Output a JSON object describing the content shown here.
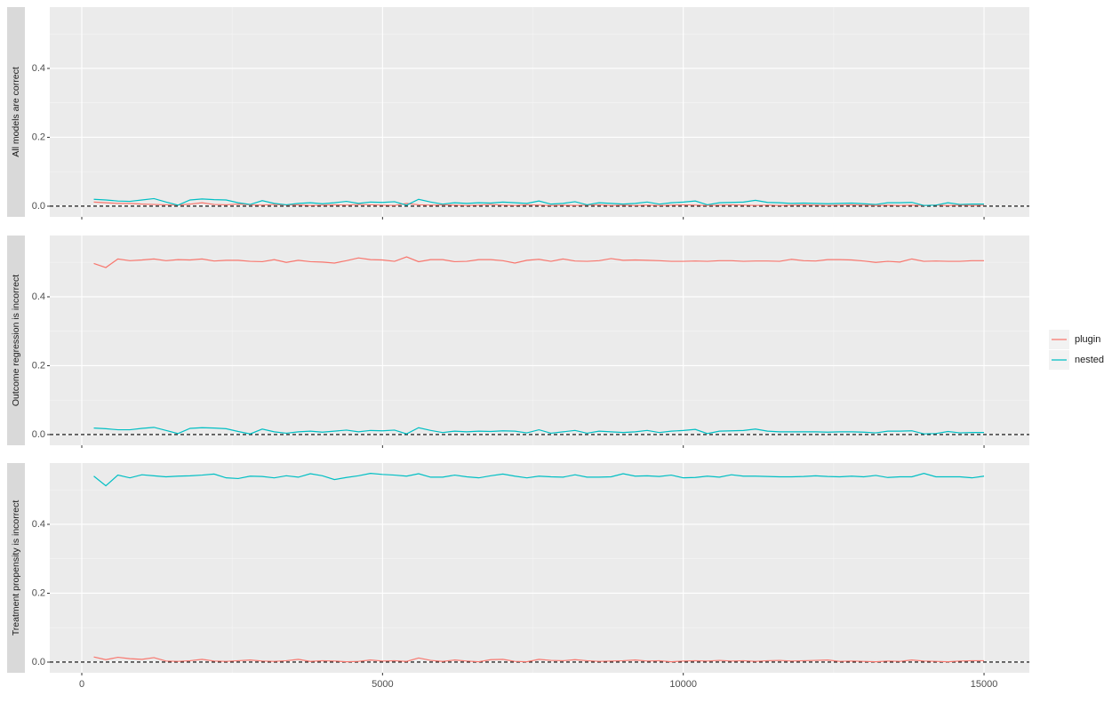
{
  "chart_data": {
    "type": "line",
    "facets": [
      "All models are correct",
      "Outcome regression is incorrect",
      "Treatment propensity is incorrect"
    ],
    "x": [
      200,
      400,
      600,
      800,
      1000,
      1200,
      1400,
      1600,
      1800,
      2000,
      2200,
      2400,
      2600,
      2800,
      3000,
      3200,
      3400,
      3600,
      3800,
      4000,
      4200,
      4400,
      4600,
      4800,
      5000,
      5200,
      5400,
      5600,
      5800,
      6000,
      6200,
      6400,
      6600,
      6800,
      7000,
      7200,
      7400,
      7600,
      7800,
      8000,
      8200,
      8400,
      8600,
      8800,
      9000,
      9200,
      9400,
      9600,
      9800,
      10000,
      10200,
      10400,
      10600,
      10800,
      11000,
      11200,
      11400,
      11600,
      11800,
      12000,
      12200,
      12400,
      12600,
      12800,
      13000,
      13200,
      13400,
      13600,
      13800,
      14000,
      14200,
      14400,
      14600,
      14800,
      15000
    ],
    "xlim": [
      -532,
      15753
    ],
    "xticks": [
      0,
      5000,
      10000,
      15000
    ],
    "ylim": [
      -0.031,
      0.578
    ],
    "yticks": [
      {
        "value": 0,
        "label": "0.0"
      },
      {
        "value": 0.2,
        "label": "0.2"
      },
      {
        "value": 0.4,
        "label": "0.4"
      }
    ],
    "hline": 0,
    "grid": true,
    "legend": "right",
    "series": [
      {
        "name": "plugin",
        "color": "#F8766D",
        "values": [
          [
            0.012,
            0.01,
            0.008,
            0.008,
            0.006,
            0.005,
            0.004,
            0.003,
            0.006,
            0.01,
            0.005,
            0.004,
            0.006,
            0.004,
            0.003,
            0.005,
            0.003,
            0.004,
            0.002,
            0.003,
            0.004,
            0.003,
            0.005,
            0.004,
            0.003,
            0.002,
            0.008,
            0.004,
            0.003,
            0.004,
            0.003,
            0.002,
            0.003,
            0.005,
            0.003,
            0.002,
            0.004,
            0.003,
            0.002,
            0.003,
            0.002,
            0.003,
            0.004,
            0.002,
            0.003,
            0.002,
            0.003,
            0.002,
            0.003,
            0.004,
            0.003,
            0.002,
            0.003,
            0.004,
            0.003,
            0.002,
            0.003,
            0.002,
            0.003,
            0.004,
            0.003,
            0.002,
            0.003,
            0.004,
            0.003,
            0.002,
            0.003,
            0.002,
            0.003,
            0.002,
            0.003,
            0.002,
            0.003,
            0.002,
            0.003
          ],
          [
            0.497,
            0.485,
            0.51,
            0.505,
            0.507,
            0.51,
            0.505,
            0.508,
            0.507,
            0.51,
            0.504,
            0.506,
            0.506,
            0.503,
            0.502,
            0.508,
            0.5,
            0.506,
            0.502,
            0.501,
            0.498,
            0.505,
            0.513,
            0.508,
            0.507,
            0.503,
            0.516,
            0.502,
            0.508,
            0.508,
            0.502,
            0.503,
            0.508,
            0.508,
            0.505,
            0.498,
            0.506,
            0.509,
            0.503,
            0.51,
            0.504,
            0.503,
            0.505,
            0.511,
            0.506,
            0.507,
            0.506,
            0.505,
            0.503,
            0.503,
            0.504,
            0.503,
            0.505,
            0.505,
            0.503,
            0.504,
            0.504,
            0.503,
            0.509,
            0.505,
            0.504,
            0.508,
            0.508,
            0.507,
            0.504,
            0.5,
            0.503,
            0.501,
            0.51,
            0.503,
            0.504,
            0.503,
            0.503,
            0.505,
            0.505
          ],
          [
            0.015,
            0.007,
            0.014,
            0.01,
            0.008,
            0.013,
            0.003,
            0.002,
            0.004,
            0.008,
            0.003,
            0.002,
            0.004,
            0.006,
            0.003,
            0.002,
            0.004,
            0.008,
            0.002,
            0.004,
            0.003,
            0.001,
            0.002,
            0.006,
            0.003,
            0.004,
            0.002,
            0.012,
            0.005,
            0.002,
            0.006,
            0.003,
            0.001,
            0.007,
            0.008,
            0.002,
            0.001,
            0.008,
            0.005,
            0.004,
            0.007,
            0.004,
            0.002,
            0.003,
            0.004,
            0.006,
            0.003,
            0.004,
            0.001,
            0.003,
            0.004,
            0.003,
            0.005,
            0.003,
            0.004,
            0.002,
            0.004,
            0.005,
            0.003,
            0.004,
            0.005,
            0.006,
            0.002,
            0.003,
            0.002,
            0.001,
            0.003,
            0.002,
            0.006,
            0.003,
            0.002,
            0.001,
            0.003,
            0.004,
            0.004
          ]
        ]
      },
      {
        "name": "nested",
        "color": "#00BFC4",
        "values": [
          [
            0.02,
            0.018,
            0.015,
            0.014,
            0.018,
            0.022,
            0.012,
            0.003,
            0.018,
            0.021,
            0.019,
            0.018,
            0.01,
            0.005,
            0.016,
            0.008,
            0.004,
            0.008,
            0.01,
            0.007,
            0.01,
            0.014,
            0.008,
            0.012,
            0.011,
            0.013,
            0.003,
            0.02,
            0.012,
            0.006,
            0.01,
            0.008,
            0.01,
            0.009,
            0.012,
            0.01,
            0.008,
            0.015,
            0.006,
            0.008,
            0.013,
            0.004,
            0.01,
            0.008,
            0.006,
            0.008,
            0.012,
            0.006,
            0.01,
            0.012,
            0.015,
            0.004,
            0.01,
            0.011,
            0.012,
            0.017,
            0.011,
            0.01,
            0.008,
            0.009,
            0.008,
            0.007,
            0.008,
            0.009,
            0.007,
            0.005,
            0.01,
            0.01,
            0.011,
            0.002,
            0.003,
            0.01,
            0.005,
            0.006,
            0.006
          ],
          [
            0.019,
            0.017,
            0.014,
            0.014,
            0.018,
            0.021,
            0.012,
            0.003,
            0.018,
            0.02,
            0.019,
            0.017,
            0.009,
            0.002,
            0.016,
            0.008,
            0.004,
            0.008,
            0.01,
            0.007,
            0.01,
            0.013,
            0.008,
            0.012,
            0.011,
            0.013,
            0.002,
            0.02,
            0.012,
            0.006,
            0.01,
            0.008,
            0.01,
            0.009,
            0.011,
            0.01,
            0.005,
            0.014,
            0.004,
            0.008,
            0.012,
            0.004,
            0.01,
            0.008,
            0.006,
            0.008,
            0.012,
            0.006,
            0.01,
            0.012,
            0.015,
            0.003,
            0.01,
            0.011,
            0.012,
            0.016,
            0.01,
            0.008,
            0.008,
            0.008,
            0.008,
            0.007,
            0.008,
            0.008,
            0.007,
            0.005,
            0.01,
            0.01,
            0.011,
            0.002,
            0.003,
            0.009,
            0.005,
            0.006,
            0.006
          ],
          [
            0.54,
            0.512,
            0.543,
            0.535,
            0.544,
            0.541,
            0.538,
            0.54,
            0.541,
            0.543,
            0.546,
            0.535,
            0.533,
            0.54,
            0.539,
            0.535,
            0.541,
            0.537,
            0.547,
            0.541,
            0.53,
            0.536,
            0.541,
            0.548,
            0.545,
            0.543,
            0.54,
            0.547,
            0.537,
            0.537,
            0.543,
            0.538,
            0.535,
            0.541,
            0.546,
            0.54,
            0.535,
            0.54,
            0.538,
            0.537,
            0.544,
            0.537,
            0.537,
            0.538,
            0.547,
            0.54,
            0.541,
            0.539,
            0.543,
            0.535,
            0.536,
            0.54,
            0.537,
            0.544,
            0.54,
            0.54,
            0.539,
            0.538,
            0.538,
            0.539,
            0.541,
            0.539,
            0.538,
            0.54,
            0.538,
            0.542,
            0.536,
            0.538,
            0.538,
            0.548,
            0.538,
            0.538,
            0.538,
            0.535,
            0.54
          ]
        ]
      }
    ]
  }
}
